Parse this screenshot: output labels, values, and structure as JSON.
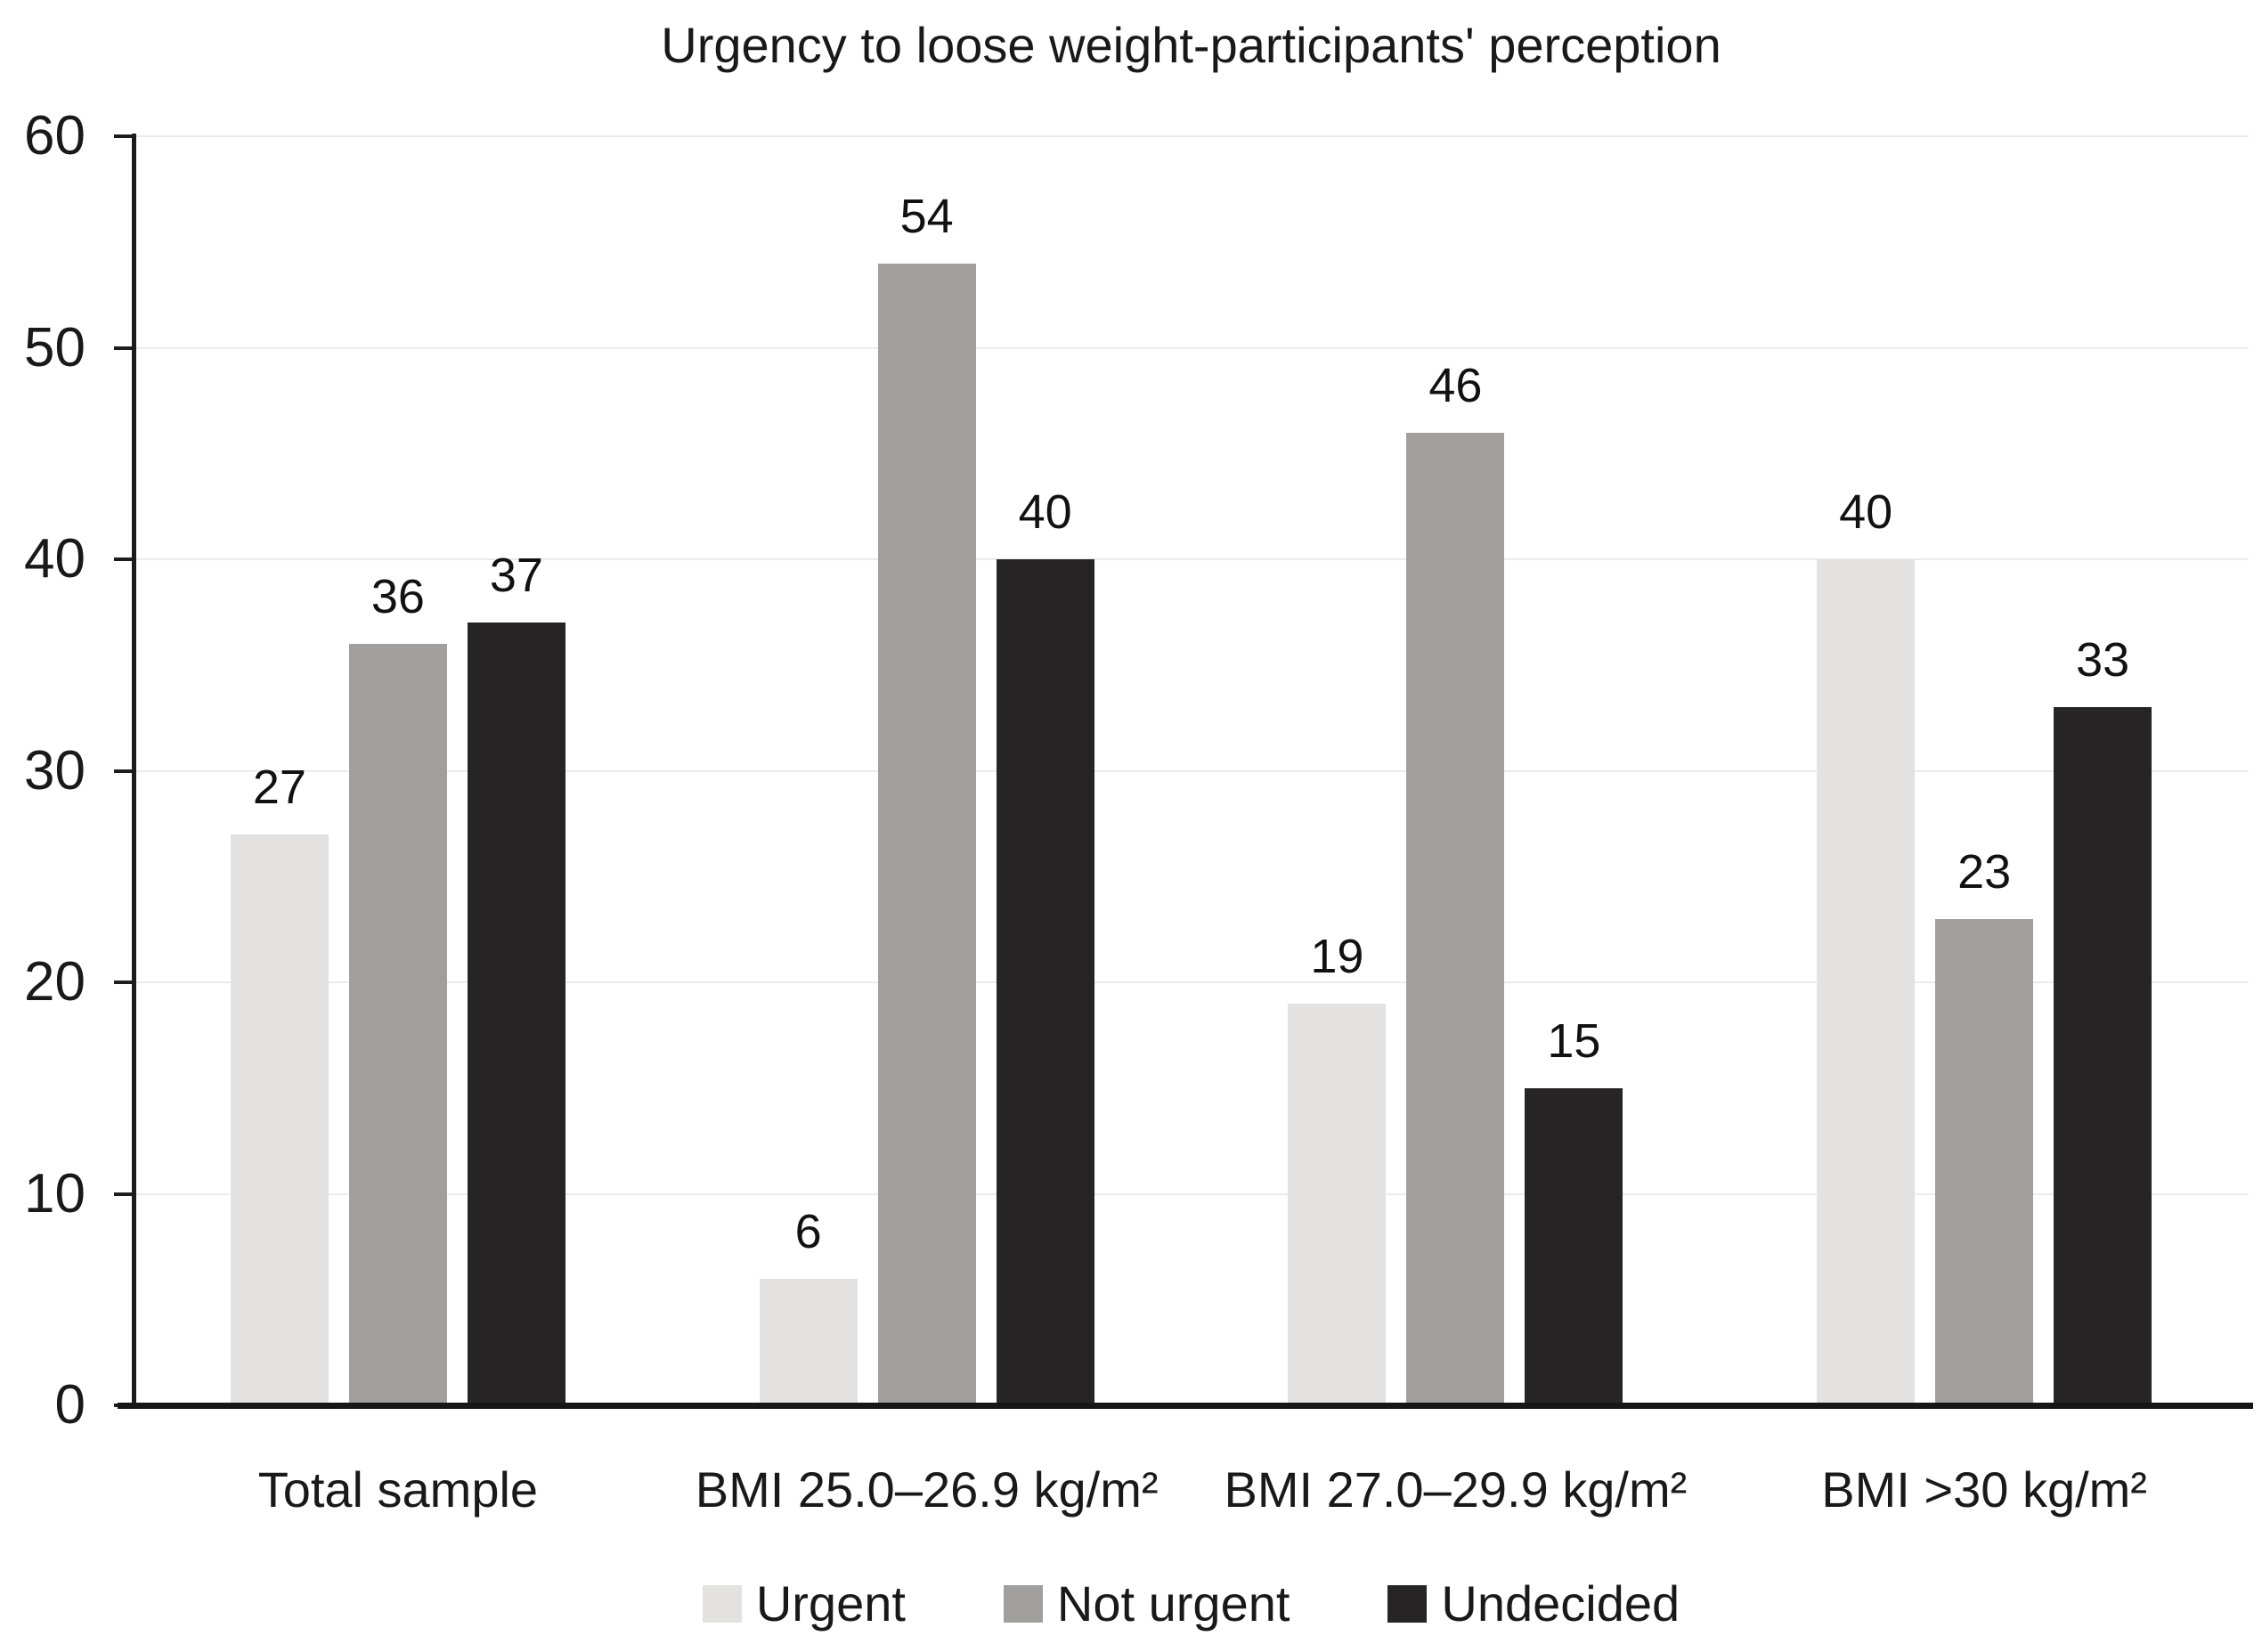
{
  "chart_data": {
    "type": "bar",
    "title": "Urgency to loose weight-participants' perception",
    "categories": [
      "Total sample",
      "BMI 25.0–26.9 kg/m²",
      "BMI 27.0–29.9 kg/m²",
      "BMI >30 kg/m²"
    ],
    "series": [
      {
        "name": "Urgent",
        "color": "#e4e2e0",
        "values": [
          27,
          6,
          19,
          40
        ]
      },
      {
        "name": "Not urgent",
        "color": "#a09f9e",
        "values": [
          36,
          54,
          46,
          23
        ]
      },
      {
        "name": "Undecided",
        "color": "#262424",
        "values": [
          37,
          40,
          15,
          33
        ]
      }
    ],
    "xlabel": "",
    "ylabel": "",
    "ylim": [
      0,
      60
    ],
    "yticks": [
      0,
      10,
      20,
      30,
      40,
      50,
      60
    ],
    "grid": true,
    "legend_position": "bottom",
    "colors": {
      "axis": "#1c1c1c",
      "gridline": "#ebebeb",
      "text": "#191919",
      "background": "#ffffff"
    }
  }
}
